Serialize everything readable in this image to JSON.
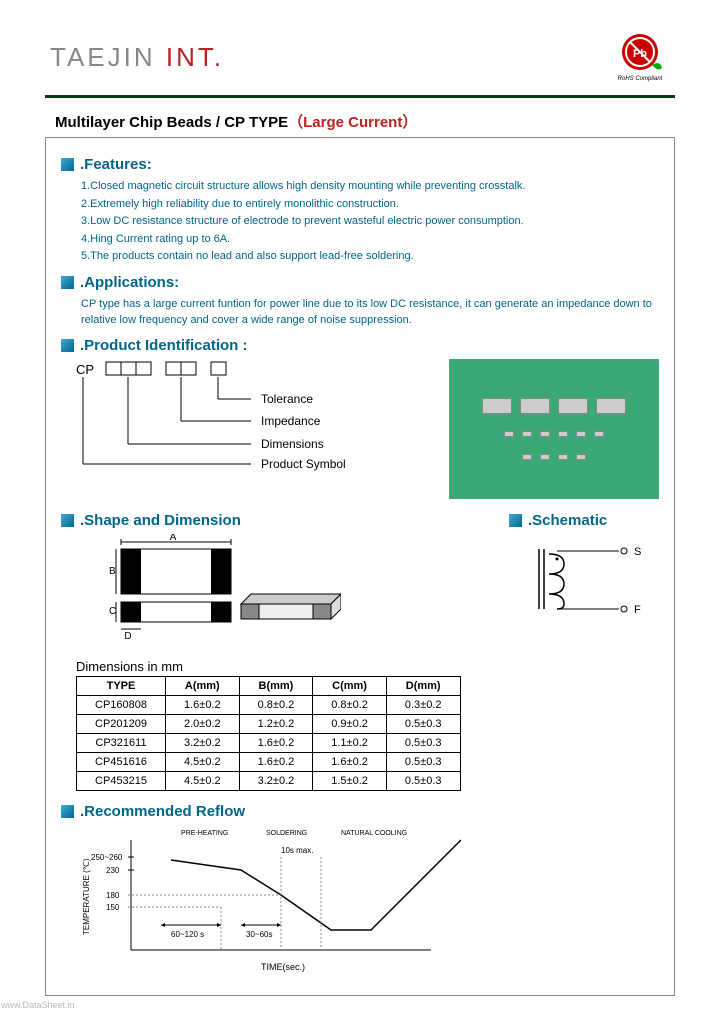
{
  "brand": {
    "name": "TAEJIN",
    "suffix": "INT.",
    "logo_text": "Pb",
    "logo_sub": "RoHS Compliant"
  },
  "title": {
    "main": "Multilayer Chip Beads  / CP TYPE",
    "paren_open": "（",
    "sub": "Large Current",
    "paren_close": "）"
  },
  "sections": {
    "features": ".Features:",
    "applications": ".Applications:",
    "product_id": ".Product Identification :",
    "shape": ".Shape and Dimension",
    "schematic": ".Schematic",
    "reflow": ".Recommended Reflow"
  },
  "features_items": [
    "1.Closed magnetic circuit structure allows high density mounting while preventing crosstalk.",
    "2.Extremely high reliability due to entirely monolithic construction.",
    "3.Low DC resistance structure of electrode to prevent wasteful electric power consumption.",
    "4.Hing Current rating up to 6A.",
    "5.The products contain no lead and also support lead-free soldering."
  ],
  "applications_text": "CP type has a large current funtion for power line due to its low DC resistance, it can generate an impedance down to relative low frequency and cover a wide range of noise suppression.",
  "ident": {
    "prefix": "CP",
    "labels": [
      "Tolerance",
      "Impedance",
      "Dimensions",
      "Product Symbol"
    ]
  },
  "schematic_labels": {
    "s": "S",
    "f": "F"
  },
  "shape_labels": {
    "a": "A",
    "b": "B",
    "c": "C",
    "d": "D"
  },
  "dim_table": {
    "title": "Dimensions in mm",
    "headers": [
      "TYPE",
      "A(mm)",
      "B(mm)",
      "C(mm)",
      "D(mm)"
    ],
    "rows": [
      [
        "CP160808",
        "1.6±0.2",
        "0.8±0.2",
        "0.8±0.2",
        "0.3±0.2"
      ],
      [
        "CP201209",
        "2.0±0.2",
        "1.2±0.2",
        "0.9±0.2",
        "0.5±0.3"
      ],
      [
        "CP321611",
        "3.2±0.2",
        "1.6±0.2",
        "1.1±0.2",
        "0.5±0.3"
      ],
      [
        "CP451616",
        "4.5±0.2",
        "1.6±0.2",
        "1.6±0.2",
        "0.5±0.3"
      ],
      [
        "CP453215",
        "4.5±0.2",
        "3.2±0.2",
        "1.5±0.2",
        "0.5±0.3"
      ]
    ]
  },
  "reflow": {
    "phase_labels": [
      "PRE-HEATING",
      "SOLDERING",
      "NATURAL COOLING"
    ],
    "peak_label": "10s max.",
    "y_ticks": [
      "250~260",
      "230",
      "180",
      "150"
    ],
    "x_label": "TIME(sec.)",
    "y_label": "TEMPERATURE (℃)",
    "durations": [
      "60~120 s",
      "30~60s"
    ],
    "profile_points": [
      [
        40,
        90
      ],
      [
        110,
        80
      ],
      [
        150,
        55
      ],
      [
        200,
        20
      ],
      [
        240,
        20
      ],
      [
        330,
        110
      ]
    ],
    "colors": {
      "line": "#000",
      "grid": "#888",
      "text": "#000"
    }
  },
  "watermark": "www.DataSheet.in"
}
